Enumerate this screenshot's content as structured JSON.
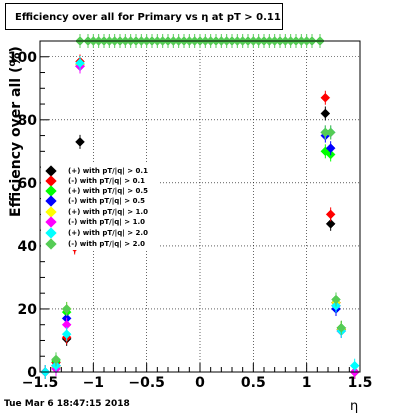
{
  "title": "Efficiency over all for Primary vs   η at pT > 0.11",
  "timestamp": "Tue Mar  6 18:47:15 2018",
  "chart_data": {
    "type": "scatter",
    "xlabel": "η",
    "ylabel": "Efficiency over all (%)",
    "xlim": [
      -1.5,
      1.5
    ],
    "ylim": [
      0,
      105
    ],
    "x_ticks": [
      "−1.5",
      "−1",
      "−0.5",
      "0",
      "0.5",
      "1",
      "1.5"
    ],
    "y_ticks": [
      "0",
      "20",
      "40",
      "60",
      "80",
      "100"
    ],
    "grid": true,
    "legend_position": "left",
    "series": [
      {
        "name": "(+) with pT/|q| > 0.1",
        "color": "#000000",
        "x": [
          -1.45,
          -1.35,
          -1.25,
          -1.175,
          -1.125,
          1.175,
          1.225,
          1.275,
          1.325,
          1.45
        ],
        "y": [
          0,
          3,
          10.5,
          40,
          73,
          82,
          47,
          20,
          13.5,
          0
        ]
      },
      {
        "name": "(-) with pT/|q| > 0.1",
        "color": "#ff0000",
        "x": [
          -1.45,
          -1.35,
          -1.25,
          -1.175,
          -1.125,
          1.175,
          1.225,
          1.275,
          1.325,
          1.45
        ],
        "y": [
          0,
          3,
          11,
          39.5,
          98.5,
          87,
          50,
          22,
          14,
          0
        ]
      },
      {
        "name": "(+) with pT/|q| > 0.5",
        "color": "#00ff00",
        "x": [
          -1.45,
          -1.35,
          -1.25,
          -1.175,
          -1.125,
          1.175,
          1.225,
          1.275,
          1.325,
          1.45
        ],
        "y": [
          0,
          3.5,
          19,
          57,
          98,
          70,
          69,
          21,
          14,
          0
        ]
      },
      {
        "name": "(-) with pT/|q| > 0.5",
        "color": "#0000ff",
        "x": [
          -1.45,
          -1.35,
          -1.25,
          -1.175,
          -1.125,
          1.175,
          1.225,
          1.275,
          1.325,
          1.45
        ],
        "y": [
          0,
          2,
          17,
          57,
          97,
          75,
          71,
          20,
          13,
          0
        ]
      },
      {
        "name": "(+) with pT/|q| > 1.0",
        "color": "#ffff00",
        "x": [
          -1.45,
          -1.35,
          -1.25,
          -1.175,
          -1.125,
          1.175,
          1.225,
          1.275,
          1.325,
          1.45
        ],
        "y": [
          0,
          1.5,
          20,
          62,
          97.5,
          76,
          76,
          22,
          13.5,
          0
        ]
      },
      {
        "name": "(-) with pT/|q| > 1.0",
        "color": "#ff00ff",
        "x": [
          -1.45,
          -1.35,
          -1.25,
          -1.175,
          -1.125,
          1.175,
          1.225,
          1.275,
          1.325,
          1.45
        ],
        "y": [
          0,
          1,
          15,
          62,
          97,
          76,
          76,
          21,
          13,
          0
        ]
      },
      {
        "name": "(+) with pT/|q| > 2.0",
        "color": "#00ffff",
        "x": [
          -1.45,
          -1.35,
          -1.25,
          -1.175,
          -1.125,
          1.175,
          1.225,
          1.275,
          1.325,
          1.45
        ],
        "y": [
          0,
          2,
          12,
          44,
          98,
          76,
          76,
          21,
          13,
          2
        ]
      },
      {
        "name": "(-) with pT/|q| > 2.0",
        "color": "#55cc55",
        "x": [
          -1.05,
          -1.0,
          -0.95,
          -0.9,
          -0.85,
          -0.8,
          -0.75,
          -0.7,
          -0.65,
          -0.6,
          -0.55,
          -0.5,
          -0.45,
          -0.4,
          -0.35,
          -0.3,
          -0.25,
          -0.2,
          -0.15,
          -0.1,
          -0.05,
          0.0,
          0.05,
          0.1,
          0.15,
          0.2,
          0.25,
          0.3,
          0.35,
          0.4,
          0.45,
          0.5,
          0.55,
          0.6,
          0.65,
          0.7,
          0.75,
          0.8,
          0.85,
          0.9,
          0.95,
          1.0,
          1.05,
          -1.125,
          1.125,
          -1.25,
          -1.175,
          1.175,
          1.225,
          1.275,
          1.325,
          -1.35
        ],
        "y": [
          105,
          105,
          105,
          105,
          105,
          105,
          105,
          105,
          105,
          105,
          105,
          105,
          105,
          105,
          105,
          105,
          105,
          105,
          105,
          105,
          105,
          105,
          105,
          105,
          105,
          105,
          105,
          105,
          105,
          105,
          105,
          105,
          105,
          105,
          105,
          105,
          105,
          105,
          105,
          105,
          105,
          105,
          105,
          105,
          105,
          20,
          43,
          76,
          76,
          23,
          14,
          4
        ]
      }
    ]
  }
}
